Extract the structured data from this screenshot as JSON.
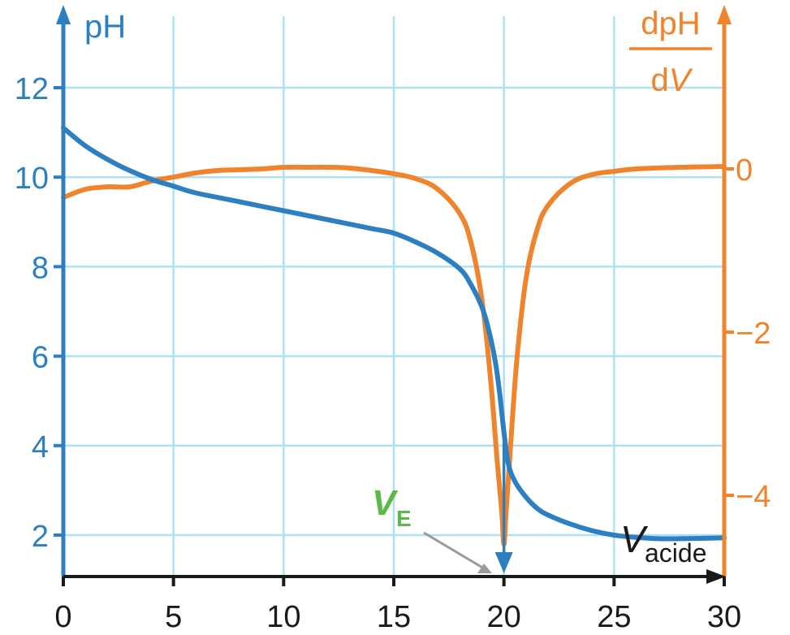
{
  "chart_data": {
    "type": "line",
    "x_ticks": [
      0,
      5,
      10,
      15,
      20,
      25,
      30
    ],
    "xlim": [
      0,
      30
    ],
    "y_ticks": [
      2,
      4,
      6,
      8,
      10,
      12
    ],
    "ylim": [
      1,
      14
    ],
    "y2_ticks": [
      0,
      -2,
      -4
    ],
    "y2lim": [
      -5.4,
      0.5
    ],
    "ylabel": "pH",
    "y2label_num": "dpH",
    "y2label_den_d": "d",
    "y2label_den_v": "V",
    "xlabel_main": "V",
    "xlabel_sub": "acide",
    "equivalence": {
      "label_main": "V",
      "label_sub": "E",
      "x": 20
    },
    "grid": true,
    "colors": {
      "ph": "#2c7fc0",
      "deriv": "#f0842c",
      "grid": "#aee0f5",
      "ve": "#5cb848",
      "axis": "#1a1a1a"
    },
    "series": [
      {
        "axis": "left",
        "x": [
          0,
          1,
          2,
          3,
          4,
          5,
          6,
          8,
          10,
          12,
          14,
          15,
          16,
          17,
          18,
          18.5,
          19,
          19.3,
          19.6,
          19.8,
          20,
          20.2,
          20.5,
          21,
          21.5,
          22,
          23,
          24,
          25,
          26,
          27,
          28,
          30
        ],
        "values": [
          11.1,
          10.7,
          10.4,
          10.15,
          9.95,
          9.8,
          9.65,
          9.45,
          9.25,
          9.05,
          8.85,
          8.75,
          8.55,
          8.3,
          7.95,
          7.6,
          7.1,
          6.6,
          5.9,
          5.2,
          4.3,
          3.6,
          3.2,
          2.85,
          2.6,
          2.45,
          2.25,
          2.1,
          2.0,
          1.95,
          1.92,
          1.92,
          1.94
        ]
      },
      {
        "axis": "right",
        "x": [
          0,
          1,
          2,
          3,
          4,
          5,
          6,
          7,
          8,
          9,
          10,
          11,
          12,
          13,
          14,
          15,
          16,
          17,
          18,
          18.5,
          19,
          19.4,
          19.7,
          19.9,
          20,
          20.1,
          20.3,
          20.6,
          21,
          21.5,
          22,
          23,
          24,
          25,
          26,
          28,
          30
        ],
        "values": [
          -0.35,
          -0.25,
          -0.22,
          -0.22,
          -0.15,
          -0.1,
          -0.05,
          -0.02,
          -0.01,
          0.0,
          0.02,
          0.02,
          0.02,
          0.01,
          -0.02,
          -0.06,
          -0.12,
          -0.25,
          -0.55,
          -0.9,
          -1.6,
          -2.6,
          -3.6,
          -4.2,
          -4.6,
          -4.2,
          -3.4,
          -2.3,
          -1.35,
          -0.75,
          -0.45,
          -0.18,
          -0.07,
          -0.03,
          0.0,
          0.02,
          0.03
        ]
      }
    ]
  }
}
